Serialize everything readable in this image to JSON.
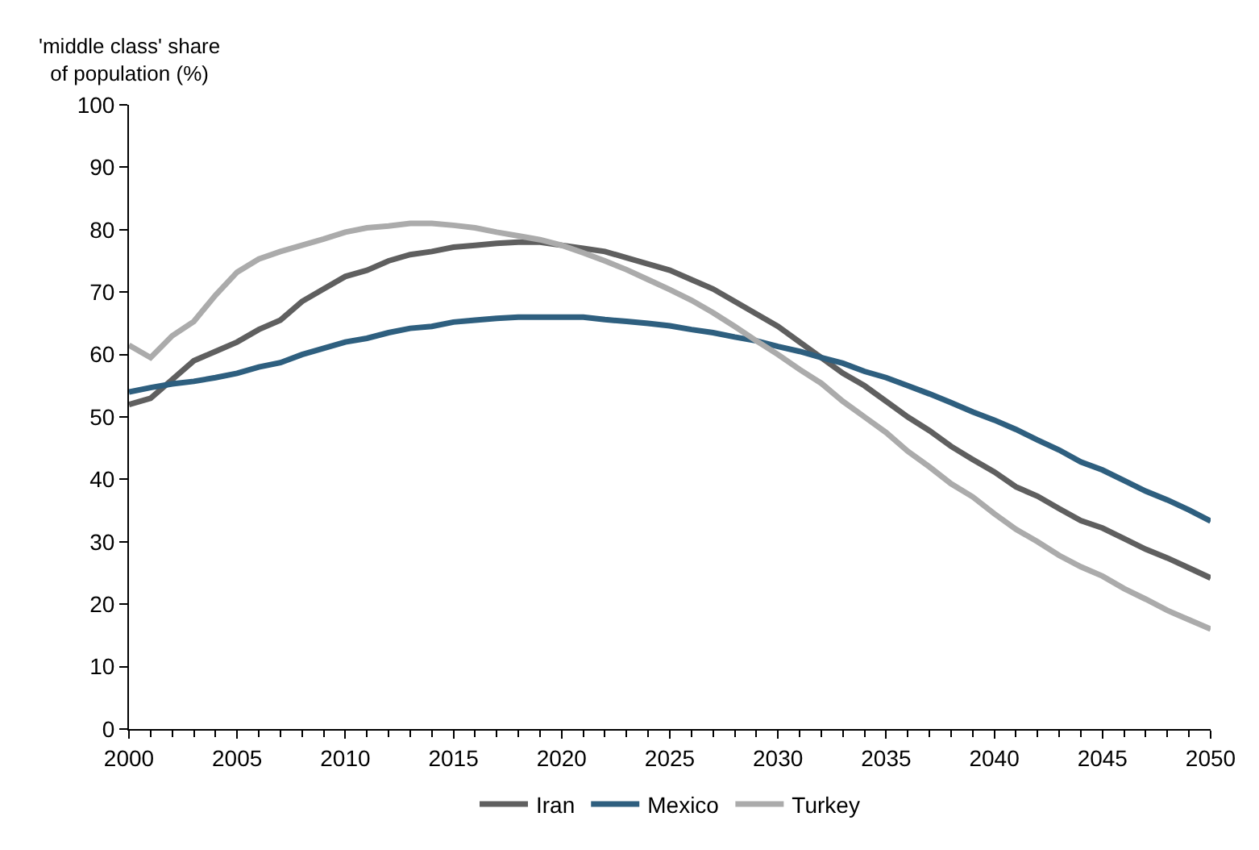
{
  "chart_data": {
    "type": "line",
    "ylabel": "'middle class' share\nof population (%)",
    "x": [
      2000,
      2001,
      2002,
      2003,
      2004,
      2005,
      2006,
      2007,
      2008,
      2009,
      2010,
      2011,
      2012,
      2013,
      2014,
      2015,
      2016,
      2017,
      2018,
      2019,
      2020,
      2021,
      2022,
      2023,
      2024,
      2025,
      2026,
      2027,
      2028,
      2029,
      2030,
      2031,
      2032,
      2033,
      2034,
      2035,
      2036,
      2037,
      2038,
      2039,
      2040,
      2041,
      2042,
      2043,
      2044,
      2045,
      2046,
      2047,
      2048,
      2049,
      2050
    ],
    "series": [
      {
        "name": "Iran",
        "color": "#5f5f5f",
        "values": [
          52,
          53,
          56,
          59,
          60.5,
          62,
          64,
          65.5,
          68.5,
          70.5,
          72.5,
          73.5,
          75,
          76,
          76.5,
          77.2,
          77.5,
          77.8,
          78,
          78,
          77.5,
          77,
          76.5,
          75.5,
          74.5,
          73.5,
          72,
          70.5,
          68.5,
          66.5,
          64.5,
          62,
          59.5,
          57,
          55,
          52.5,
          50,
          47.8,
          45.3,
          43.2,
          41.2,
          38.8,
          37.3,
          35.3,
          33.4,
          32.2,
          30.5,
          28.8,
          27.4,
          25.8,
          24.2
        ]
      },
      {
        "name": "Mexico",
        "color": "#2e5f7f",
        "values": [
          54,
          54.7,
          55.3,
          55.7,
          56.3,
          57,
          58,
          58.7,
          60,
          61,
          62,
          62.6,
          63.5,
          64.2,
          64.5,
          65.2,
          65.5,
          65.8,
          66,
          66,
          66,
          66,
          65.6,
          65.3,
          65,
          64.6,
          64,
          63.5,
          62.8,
          62.2,
          61.3,
          60.5,
          59.5,
          58.6,
          57.3,
          56.3,
          55,
          53.7,
          52.3,
          50.8,
          49.5,
          48,
          46.3,
          44.7,
          42.8,
          41.5,
          39.8,
          38.1,
          36.7,
          35.1,
          33.3
        ]
      },
      {
        "name": "Turkey",
        "color": "#ababab",
        "values": [
          61.5,
          59.5,
          63,
          65.3,
          69.5,
          73.2,
          75.3,
          76.5,
          77.5,
          78.5,
          79.6,
          80.3,
          80.6,
          81,
          81,
          80.7,
          80.3,
          79.6,
          79,
          78.4,
          77.5,
          76.3,
          75,
          73.6,
          72,
          70.4,
          68.7,
          66.7,
          64.5,
          62.2,
          60,
          57.6,
          55.4,
          52.5,
          50,
          47.5,
          44.5,
          42,
          39.3,
          37.2,
          34.5,
          32,
          30,
          27.8,
          26,
          24.5,
          22.5,
          20.8,
          19,
          17.5,
          16
        ]
      }
    ],
    "xlim": [
      2000,
      2050
    ],
    "xticks": [
      2000,
      2005,
      2010,
      2015,
      2020,
      2025,
      2030,
      2035,
      2040,
      2045,
      2050
    ],
    "ylim": [
      0,
      100
    ],
    "yticks": [
      0,
      10,
      20,
      30,
      40,
      50,
      60,
      70,
      80,
      90,
      100
    ],
    "legend": "bottom",
    "marker": "none",
    "line_style": "solid"
  }
}
